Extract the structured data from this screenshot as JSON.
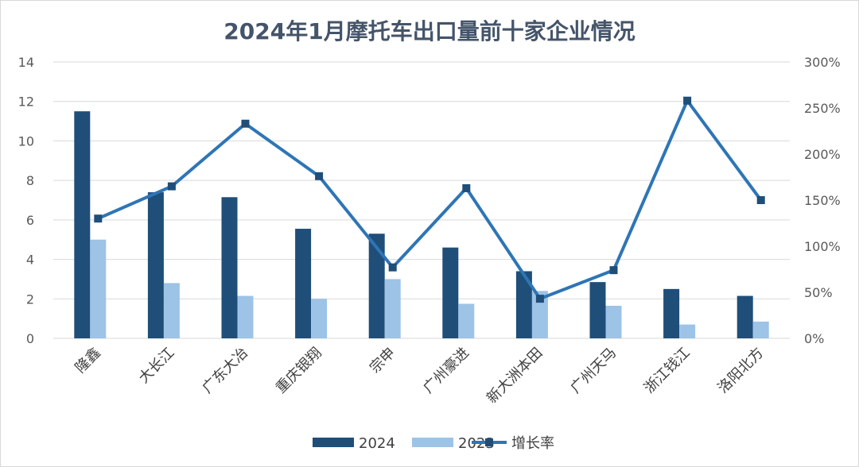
{
  "chart_data": {
    "type": "bar",
    "title": "2024年1月摩托车出口量前十家企业情况",
    "categories": [
      "隆鑫",
      "大长江",
      "广东大冶",
      "重庆银翔",
      "宗申",
      "广州豪进",
      "新大洲本田",
      "广州天马",
      "浙江钱江",
      "洛阳北方"
    ],
    "series": [
      {
        "name": "2024",
        "type": "bar",
        "axis": "left",
        "color": "#1f4e79",
        "values": [
          11.5,
          7.4,
          7.15,
          5.55,
          5.3,
          4.6,
          3.4,
          2.85,
          2.5,
          2.15
        ]
      },
      {
        "name": "2023",
        "type": "bar",
        "axis": "left",
        "color": "#9dc3e6",
        "values": [
          5.0,
          2.8,
          2.15,
          2.0,
          3.0,
          1.75,
          2.4,
          1.65,
          0.7,
          0.85
        ]
      },
      {
        "name": "增长率",
        "type": "line",
        "axis": "right",
        "color": "#2e75b6",
        "values": [
          130,
          165,
          233,
          176,
          77,
          163,
          43,
          74,
          258,
          150
        ]
      }
    ],
    "left_axis": {
      "min": 0,
      "max": 14,
      "ticks": [
        "0",
        "2",
        "4",
        "6",
        "8",
        "10",
        "12",
        "14"
      ]
    },
    "right_axis": {
      "min": 0,
      "max": 300,
      "ticks": [
        "0%",
        "50%",
        "100%",
        "150%",
        "200%",
        "250%",
        "300%"
      ]
    },
    "grid": true,
    "legend_position": "bottom"
  }
}
